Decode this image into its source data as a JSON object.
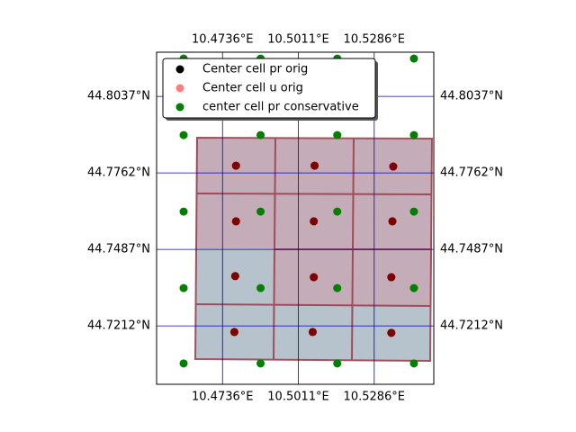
{
  "chart_data": {
    "type": "scatter",
    "xlim": [
      10.4497,
      10.5502
    ],
    "ylim": [
      44.7002,
      44.8196
    ],
    "xticks": [
      {
        "value": 10.4736,
        "label": "10.4736°E"
      },
      {
        "value": 10.5011,
        "label": "10.5011°E"
      },
      {
        "value": 10.5286,
        "label": "10.5286°E"
      }
    ],
    "yticks": [
      {
        "value": 44.8037,
        "label": "44.8037°N"
      },
      {
        "value": 44.7762,
        "label": "44.7762°N"
      },
      {
        "value": 44.7487,
        "label": "44.7487°N"
      },
      {
        "value": 44.7212,
        "label": "44.7212°N"
      }
    ],
    "grid": true,
    "grid_color": "#0000cc",
    "legend": "upper left",
    "series": [
      {
        "name": "Center cell pr orig",
        "color": "#000000",
        "opacity": 1,
        "x": [
          10.4785,
          10.507,
          10.5355,
          10.4785,
          10.5067,
          10.5352,
          10.4782,
          10.5067,
          10.5348,
          10.4779,
          10.5063,
          10.5348
        ],
        "values": [
          44.7788,
          44.7788,
          44.7785,
          44.7588,
          44.7588,
          44.7588,
          44.7391,
          44.7387,
          44.7387,
          44.719,
          44.719,
          44.7187
        ]
      },
      {
        "name": "Center cell u orig",
        "color": "#ff0000",
        "opacity": 0.5,
        "x": [
          10.4785,
          10.507,
          10.5355,
          10.4785,
          10.5067,
          10.5352,
          10.4782,
          10.5067,
          10.5348,
          10.4779,
          10.5063,
          10.5348
        ],
        "values": [
          44.7788,
          44.7788,
          44.7785,
          44.7588,
          44.7588,
          44.7588,
          44.7391,
          44.7387,
          44.7387,
          44.719,
          44.719,
          44.7187
        ]
      },
      {
        "name": "center cell pr conservative",
        "color": "#008000",
        "opacity": 1,
        "x": [
          10.4595,
          10.4874,
          10.5152,
          10.543,
          10.4595,
          10.4874,
          10.5152,
          10.543,
          10.4595,
          10.4874,
          10.5152,
          10.543,
          10.4595,
          10.4874,
          10.5152,
          10.543,
          10.4595,
          10.4874,
          10.5152,
          10.543
        ],
        "values": [
          44.8173,
          44.8173,
          44.8173,
          44.8173,
          44.7898,
          44.7898,
          44.7898,
          44.7898,
          44.7623,
          44.7623,
          44.7623,
          44.7623,
          44.7348,
          44.7348,
          44.7348,
          44.7348,
          44.7077,
          44.7077,
          44.7077,
          44.7077
        ]
      }
    ]
  }
}
